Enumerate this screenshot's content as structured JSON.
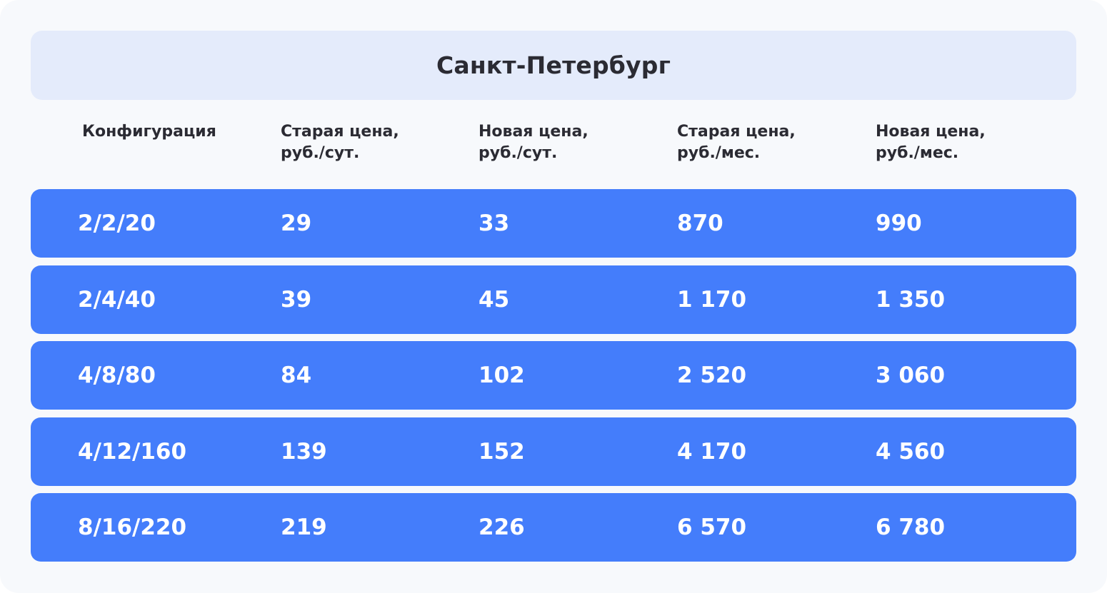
{
  "title": "Санкт-Петербург",
  "headers": [
    {
      "line1": "Конфигурация",
      "line2": ""
    },
    {
      "line1": "Старая цена,",
      "line2": "руб./сут."
    },
    {
      "line1": "Новая цена,",
      "line2": "руб./сут."
    },
    {
      "line1": "Старая цена,",
      "line2": "руб./мес."
    },
    {
      "line1": "Новая цена,",
      "line2": "руб./мес."
    }
  ],
  "rows": [
    [
      "2/2/20",
      "29",
      "33",
      "870",
      "990"
    ],
    [
      "2/4/40",
      "39",
      "45",
      "1 170",
      "1 350"
    ],
    [
      "4/8/80",
      "84",
      "102",
      "2 520",
      "3 060"
    ],
    [
      "4/12/160",
      "139",
      "152",
      "4 170",
      "4 560"
    ],
    [
      "8/16/220",
      "219",
      "226",
      "6 570",
      "6 780"
    ]
  ],
  "colors": {
    "background": "#f7f9fc",
    "title_bar": "#e4ebfb",
    "row": "#447dfb",
    "text_dark": "#2b2b33",
    "text_light": "#ffffff"
  }
}
